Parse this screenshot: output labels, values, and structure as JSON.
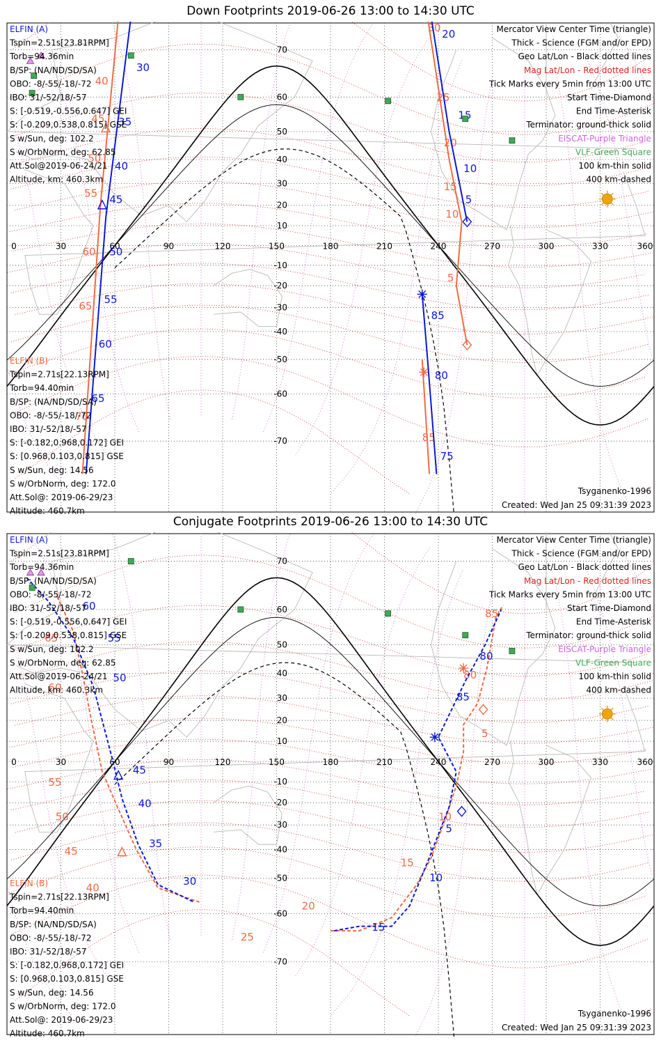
{
  "chart_data": [
    {
      "type": "map",
      "title": "Down Footprints 2019-06-26 13:00 to 14:30 UTC",
      "projection": "Mercator",
      "lon_ticks": [
        "0",
        "30",
        "60",
        "90",
        "120",
        "150",
        "180",
        "210",
        "240",
        "270",
        "300",
        "330",
        "360"
      ],
      "lat_ticks": [
        "70",
        "60",
        "50",
        "40",
        "30",
        "20",
        "10",
        "-10",
        "-20",
        "-30",
        "-40",
        "-50",
        "-60",
        "-70"
      ],
      "ellipse_lines": [
        "ELFIN (A)",
        "Tspin=2.51s[23.81RPM]",
        "Torb=94.36min",
        "B/SP: (NA/ND/SD/SA)",
        "OBO: -8/-55/-18/-72",
        "IBO: 31/-52/18/-57",
        "S: [-0.519,-0.556,0.647] GEI",
        "S: [-0.209,0.538,0.815] GSE",
        "S w/Sun, deg: 102.2",
        "S w/OrbNorm, deg: 62.85",
        "Att.Sol@2019-06-24/21",
        "Altitude, km: 460.3km"
      ],
      "ellipse_b_lines": [
        "ELFIN (B)",
        "Tspin=2.71s[22.13RPM]",
        "Torb=94.40min",
        "B/SP: (NA/ND/SD/SA)",
        "OBO: -8/-55/-18/-72",
        "IBO: 31/-52/18/-57",
        "S: [-0.182,0.968,0.172] GEI",
        "S: [0.968,0.103,0.815] GSE",
        "S w/Sun, deg: 14.56",
        "S w/OrbNorm, deg: 172.0",
        "Att.Sol@: 2019-06-29/23",
        "Altitude: 460.7km"
      ],
      "legend_lines": [
        "Mercator View Center Time (triangle)",
        "Thick - Science (FGM and/or EPD)",
        "Geo Lat/Lon - Black dotted lines",
        "Mag Lat/Lon - Red dotted lines",
        "Tick Marks every 5min from 13:00 UTC",
        "Start Time-Diamond",
        "End Time-Asterisk",
        "Terminator: ground-thick solid",
        "EISCAT-Purple Triangle",
        "VLF-Green Square",
        "100 km-thin solid",
        "400 km-dashed"
      ],
      "model": "Tsyganenko-1996",
      "created": "Created: Wed Jan 25 09:31:39 2023",
      "elfin_a_track": {
        "segments": [
          {
            "lonlat": [
              [
                69,
                75
              ],
              [
                55,
                14
              ],
              [
                44,
                -75
              ]
            ]
          },
          {
            "lonlat": [
              [
                236,
                75
              ],
              [
                246,
                50
              ],
              [
                256,
                12
              ]
            ]
          },
          {
            "lonlat": [
              [
                231,
                -24
              ],
              [
                234,
                -50
              ],
              [
                239,
                -75
              ]
            ]
          }
        ],
        "tick_labels": [
          {
            "label": "30",
            "lon": 72,
            "lat": 66
          },
          {
            "label": "35",
            "lon": 62,
            "lat": 52
          },
          {
            "label": "40",
            "lon": 60,
            "lat": 36
          },
          {
            "label": "45",
            "lon": 57,
            "lat": 21
          },
          {
            "label": "50",
            "lon": 57,
            "lat": -5
          },
          {
            "label": "55",
            "lon": 54,
            "lat": -28
          },
          {
            "label": "60",
            "lon": 51,
            "lat": -46
          },
          {
            "label": "65",
            "lon": 47,
            "lat": -62
          },
          {
            "label": "20",
            "lon": 242,
            "lat": 72
          },
          {
            "label": "15",
            "lon": 251,
            "lat": 54
          },
          {
            "label": "10",
            "lon": 254,
            "lat": 35
          },
          {
            "label": "5",
            "lon": 255,
            "lat": 21
          },
          {
            "label": "85",
            "lon": 236,
            "lat": -35
          },
          {
            "label": "80",
            "lon": 238,
            "lat": -56
          },
          {
            "label": "75",
            "lon": 241,
            "lat": -73
          }
        ],
        "start": {
          "lon": 256,
          "lat": 12
        },
        "end": {
          "lon": 231,
          "lat": -24
        },
        "center": {
          "lon": 53,
          "lat": 20
        }
      },
      "elfin_b_track": {
        "segments": [
          {
            "lonlat": [
              [
                62,
                75
              ],
              [
                52,
                20
              ],
              [
                42,
                -75
              ]
            ]
          },
          {
            "lonlat": [
              [
                234,
                75
              ],
              [
                246,
                40
              ],
              [
                253,
                12
              ],
              [
                250,
                -20
              ],
              [
                256,
                -45
              ]
            ]
          },
          {
            "lonlat": [
              [
                231,
                -50
              ],
              [
                235,
                -75
              ]
            ]
          }
        ],
        "tick_labels": [
          {
            "label": "40",
            "lon": 49,
            "lat": 63
          },
          {
            "label": "45",
            "lon": 47,
            "lat": 53
          },
          {
            "label": "50",
            "lon": 45,
            "lat": 39
          },
          {
            "label": "55",
            "lon": 43,
            "lat": 24
          },
          {
            "label": "60",
            "lon": 42,
            "lat": -5
          },
          {
            "label": "65",
            "lon": 40,
            "lat": -31
          },
          {
            "label": "70",
            "lon": 38,
            "lat": -66
          },
          {
            "label": "30",
            "lon": 234,
            "lat": 73
          },
          {
            "label": "25",
            "lon": 239,
            "lat": 59
          },
          {
            "label": "20",
            "lon": 243,
            "lat": 45
          },
          {
            "label": "15",
            "lon": 243,
            "lat": 27
          },
          {
            "label": "10",
            "lon": 244,
            "lat": 14
          },
          {
            "label": "5",
            "lon": 245,
            "lat": -18
          },
          {
            "label": "85",
            "lon": 231,
            "lat": -70
          }
        ],
        "start": {
          "lon": 256,
          "lat": -45
        },
        "end": {
          "lon": 232,
          "lat": -54
        },
        "center": {
          "lon": 55,
          "lat": 51
        }
      },
      "eiscat": [
        {
          "lon": 13,
          "lat": 68
        },
        {
          "lon": 19,
          "lat": 69
        }
      ],
      "vlf": [
        {
          "lon": 15,
          "lat": 65
        },
        {
          "lon": 14,
          "lat": 61
        },
        {
          "lon": 69,
          "lat": 69
        },
        {
          "lon": 130,
          "lat": 60
        },
        {
          "lon": 212,
          "lat": 59
        },
        {
          "lon": 255,
          "lat": 54
        },
        {
          "lon": 281,
          "lat": 47
        }
      ],
      "sun": {
        "lon": 334,
        "lat": 23
      }
    },
    {
      "type": "map",
      "title": "Conjugate Footprints 2019-06-26 13:00 to 14:30 UTC",
      "projection": "Mercator",
      "lon_ticks": [
        "0",
        "30",
        "60",
        "90",
        "120",
        "150",
        "180",
        "210",
        "240",
        "270",
        "300",
        "330",
        "360"
      ],
      "lat_ticks": [
        "70",
        "60",
        "50",
        "40",
        "30",
        "20",
        "10",
        "-10",
        "-20",
        "-30",
        "-40",
        "-50",
        "-60",
        "-70"
      ],
      "ellipse_lines": [
        "ELFIN (A)",
        "Tspin=2.51s[23.81RPM]",
        "Torb=94.36min",
        "B/SP: (NA/ND/SD/SA)",
        "OBO: -8/-55/-18/-72",
        "IBO: 31/-52/18/-57",
        "S: [-0.519,-0.556,0.647] GEI",
        "S: [-0.209,0.538,0.815] GSE",
        "S w/Sun, deg: 102.2",
        "S w/OrbNorm, deg: 62.85",
        "Att.Sol@2019-06-24/21",
        "Altitude, km: 460.3km"
      ],
      "ellipse_b_lines": [
        "ELFIN (B)",
        "Tspin=2.71s[22.13RPM]",
        "Torb=94.40min",
        "B/SP: (NA/ND/SD/SA)",
        "OBO: -8/-55/-18/-72",
        "IBO: 31/-52/18/-57",
        "S: [-0.182,0.968,0.172] GEI",
        "S: [0.968,0.103,0.815] GSE",
        "S w/Sun, deg: 14.56",
        "S w/OrbNorm, deg: 172.0",
        "Att.Sol@: 2019-06-29/23",
        "Altitude: 460.7km"
      ],
      "legend_lines": [
        "Mercator View Center Time (triangle)",
        "Thick - Science (FGM and/or EPD)",
        "Geo Lat/Lon - Black dotted lines",
        "Mag Lat/Lon - Red dotted lines",
        "Tick Marks every 5min from 13:00 UTC",
        "Start Time-Diamond",
        "End Time-Asterisk",
        "Terminator: ground-thick solid",
        "EISCAT-Purple Triangle",
        "VLF-Green Square",
        "100 km-thin solid",
        "400 km-dashed"
      ],
      "model": "Tsyganenko-1996",
      "created": "Created: Wed Jan 25 09:31:39 2023",
      "elfin_a_track": {
        "segments": [
          {
            "lonlat": [
              [
                11,
                67
              ],
              [
                23,
                62
              ],
              [
                37,
                52
              ],
              [
                48,
                35
              ],
              [
                59,
                0
              ],
              [
                64,
                -18
              ],
              [
                73,
                -38
              ],
              [
                84,
                -52
              ],
              [
                104,
                -57
              ]
            ]
          },
          {
            "lonlat": [
              [
                182,
                -64
              ],
              [
                196,
                -63
              ],
              [
                214,
                -63
              ],
              [
                224,
                -58
              ],
              [
                235,
                -43
              ],
              [
                246,
                -22
              ],
              [
                250,
                -5
              ],
              [
                240,
                12
              ],
              [
                255,
                37
              ],
              [
                266,
                50
              ],
              [
                275,
                60
              ]
            ]
          }
        ],
        "tick_labels": [
          {
            "label": "60",
            "lon": 42,
            "lat": 60
          },
          {
            "label": "55",
            "lon": 56,
            "lat": 51
          },
          {
            "label": "50",
            "lon": 59,
            "lat": 37
          },
          {
            "label": "45",
            "lon": 70,
            "lat": -6
          },
          {
            "label": "40",
            "lon": 73,
            "lat": -22
          },
          {
            "label": "35",
            "lon": 79,
            "lat": -39
          },
          {
            "label": "30",
            "lon": 98,
            "lat": -52
          },
          {
            "label": "15",
            "lon": 203,
            "lat": -64
          },
          {
            "label": "10",
            "lon": 235,
            "lat": -51
          },
          {
            "label": "5",
            "lon": 244,
            "lat": -33
          },
          {
            "label": "85",
            "lon": 250,
            "lat": 29
          },
          {
            "label": "80",
            "lon": 263,
            "lat": 45
          }
        ],
        "start": {
          "lon": 253,
          "lat": -24
        },
        "end": {
          "lon": 238,
          "lat": 12
        },
        "center": {
          "lon": 62,
          "lat": -7
        }
      },
      "elfin_b_track": {
        "segments": [
          {
            "lonlat": [
              [
                28,
                63
              ],
              [
                37,
                54
              ],
              [
                42,
                40
              ],
              [
                47,
                20
              ],
              [
                53,
                -5
              ],
              [
                62,
                -23
              ],
              [
                72,
                -40
              ],
              [
                84,
                -53
              ],
              [
                107,
                -57
              ]
            ]
          },
          {
            "lonlat": [
              [
                180,
                -64
              ],
              [
                196,
                -64
              ],
              [
                214,
                -61
              ],
              [
                228,
                -52
              ],
              [
                236,
                -43
              ],
              [
                244,
                -27
              ],
              [
                250,
                -12
              ],
              [
                254,
                5
              ],
              [
                254,
                18
              ],
              [
                262,
                28
              ],
              [
                267,
                42
              ],
              [
                272,
                58
              ],
              [
                276,
                61
              ]
            ]
          }
        ],
        "tick_labels": [
          {
            "label": "65",
            "lon": 21,
            "lat": 51
          },
          {
            "label": "60",
            "lon": 23,
            "lat": 33
          },
          {
            "label": "55",
            "lon": 23,
            "lat": -12
          },
          {
            "label": "50",
            "lon": 27,
            "lat": -28
          },
          {
            "label": "45",
            "lon": 32,
            "lat": -42
          },
          {
            "label": "40",
            "lon": 44,
            "lat": -54
          },
          {
            "label": "25",
            "lon": 130,
            "lat": -66
          },
          {
            "label": "20",
            "lon": 164,
            "lat": -59
          },
          {
            "label": "15",
            "lon": 219,
            "lat": -46
          },
          {
            "label": "10",
            "lon": 240,
            "lat": -28
          },
          {
            "label": "5",
            "lon": 264,
            "lat": 12
          },
          {
            "label": "80",
            "lon": 254,
            "lat": 38
          },
          {
            "label": "85",
            "lon": 266,
            "lat": 58
          }
        ],
        "start": {
          "lon": 265,
          "lat": 25
        },
        "end": {
          "lon": 254,
          "lat": 42
        },
        "center": {
          "lon": 64,
          "lat": -41
        }
      },
      "eiscat": [
        {
          "lon": 13,
          "lat": 68
        },
        {
          "lon": 19,
          "lat": 68
        }
      ],
      "vlf": [
        {
          "lon": 14,
          "lat": 65
        },
        {
          "lon": 69,
          "lat": 70
        },
        {
          "lon": 130,
          "lat": 60
        },
        {
          "lon": 212,
          "lat": 59
        },
        {
          "lon": 255,
          "lat": 53
        },
        {
          "lon": 281,
          "lat": 48
        }
      ],
      "sun": {
        "lon": 334,
        "lat": 23
      }
    }
  ]
}
